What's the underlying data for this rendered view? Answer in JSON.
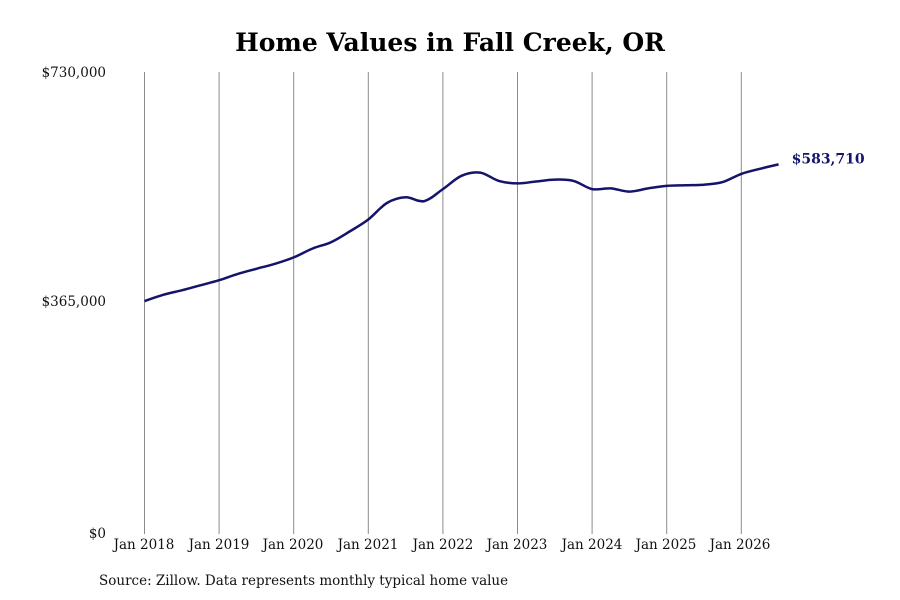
{
  "page": {
    "title": "Home Values in Fall Creek, OR",
    "source": "Source: Zillow. Data represents monthly typical home value"
  },
  "chart_data": {
    "type": "line",
    "title": "Home Values in Fall Creek, OR",
    "xlabel": "",
    "ylabel": "",
    "ylim": [
      0,
      730000
    ],
    "yticks": [
      "$0",
      "$365,000",
      "$730,000"
    ],
    "ytick_values": [
      0,
      365000,
      730000
    ],
    "xticks": [
      "Jan 2018",
      "Jan 2019",
      "Jan 2020",
      "Jan 2021",
      "Jan 2022",
      "Jan 2023",
      "Jan 2024",
      "Jan 2025",
      "Jan 2026"
    ],
    "grid": "vertical",
    "end_label": "$583,710",
    "line_color": "#14146b",
    "series": [
      {
        "x": [
          "2018-01",
          "2018-04",
          "2018-07",
          "2018-10",
          "2019-01",
          "2019-04",
          "2019-07",
          "2019-10",
          "2020-01",
          "2020-04",
          "2020-07",
          "2020-10",
          "2021-01",
          "2021-04",
          "2021-07",
          "2021-10",
          "2022-01",
          "2022-04",
          "2022-07",
          "2022-10",
          "2023-01",
          "2023-04",
          "2023-07",
          "2023-10",
          "2024-01",
          "2024-04",
          "2024-07",
          "2024-10",
          "2025-01",
          "2025-04",
          "2025-07",
          "2025-10",
          "2026-01",
          "2026-04",
          "2026-07"
        ],
        "values": [
          368000,
          378000,
          385000,
          393000,
          401000,
          411000,
          419000,
          427000,
          437000,
          451000,
          461000,
          478000,
          497000,
          523000,
          532000,
          526000,
          545000,
          566000,
          571000,
          558000,
          554000,
          557000,
          560000,
          558000,
          545000,
          546000,
          541000,
          546000,
          550000,
          551000,
          552000,
          556000,
          569000,
          577000,
          584000
        ]
      }
    ]
  }
}
